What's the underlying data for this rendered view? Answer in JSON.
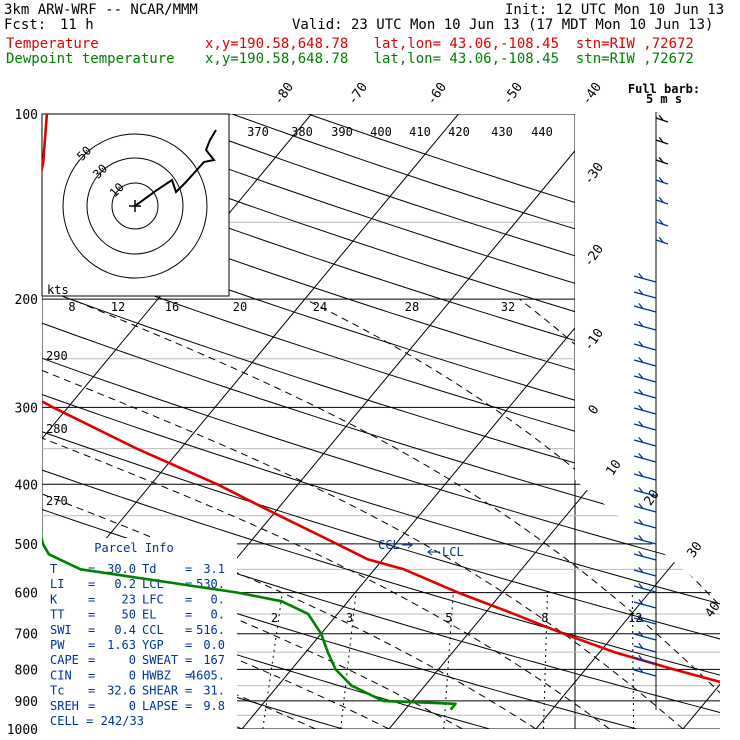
{
  "header": {
    "title": "3km ARW-WRF -- NCAR/MMM",
    "init": "Init: 12 UTC Mon 10 Jun 13",
    "fcst_label": "Fcst:",
    "fcst_value": "11 h",
    "valid": "Valid: 23 UTC Mon 10 Jun 13 (17 MDT Mon 10 Jun 13)"
  },
  "legend": [
    {
      "name": "Temperature",
      "info": "x,y=190.58,648.78   lat,lon= 43.06,-108.45  stn=RIW ,72672",
      "color": "#e00000"
    },
    {
      "name": "Dewpoint temperature",
      "info": "x,y=190.58,648.78   lat,lon= 43.06,-108.45  stn=RIW ,72672",
      "color": "#008000"
    }
  ],
  "barb_legend": {
    "line1": "Full barb:",
    "line2": "5 m s"
  },
  "hodograph": {
    "units": "kts",
    "ring_labels": [
      "50",
      "30",
      "10"
    ]
  },
  "parcel_info": {
    "title": "Parcel Info",
    "rows": [
      [
        "T",
        "=",
        "30.0",
        "Td",
        "=",
        "3.1"
      ],
      [
        "LI",
        "=",
        "0.2",
        "LCL",
        "=",
        "530."
      ],
      [
        "K",
        "=",
        "23",
        "LFC",
        "=",
        "0."
      ],
      [
        "TT",
        "=",
        "50",
        "EL",
        "=",
        "0."
      ],
      [
        "SWI",
        "=",
        "0.4",
        "CCL",
        "=",
        "516."
      ],
      [
        "PW",
        "=",
        "1.63",
        "YGP",
        "=",
        "0.0"
      ],
      [
        "CAPE",
        "=",
        "0",
        "SWEAT",
        "=",
        "167"
      ],
      [
        "CIN",
        "=",
        "0",
        "HWBZ",
        "=",
        "4605."
      ],
      [
        "Tc",
        "=",
        "32.6",
        "SHEAR",
        "=",
        "31."
      ],
      [
        "SREH",
        "=",
        "0",
        "LAPSE",
        "=",
        "9.8"
      ],
      [
        "CELL",
        "=",
        "242/33",
        "",
        "",
        ""
      ]
    ]
  },
  "markers": {
    "ccl": "CCL",
    "lcl": "LCL"
  },
  "colors": {
    "temperature": "#e00000",
    "dewpoint": "#008000",
    "isotherm": "#000000",
    "parcel_box": "#003399"
  },
  "chart_data": {
    "type": "line",
    "title": "",
    "ylabel": "",
    "xlabel": "",
    "y_scale": "log",
    "ylim": [
      1000,
      100
    ],
    "pressure_ticks": [
      100,
      200,
      300,
      400,
      500,
      600,
      700,
      800,
      900,
      1000
    ],
    "isotherm_labels": [
      "-80",
      "-70",
      "-60",
      "-50",
      "-40",
      "-30",
      "-20",
      "-10",
      "0",
      "10",
      "20",
      "30",
      "40"
    ],
    "theta_labels": [
      "370",
      "380",
      "390",
      "400",
      "410",
      "420",
      "430",
      "440"
    ],
    "theta_left_labels": [
      "290",
      "280",
      "270"
    ],
    "mixing_ratio_labels": [
      "2",
      "3",
      "5",
      "8",
      "12",
      "20"
    ],
    "hodograph_speed_labels": [
      "8",
      "12",
      "16",
      "20",
      "24",
      "28",
      "32"
    ],
    "series": [
      {
        "name": "Temperature",
        "color": "#e00000",
        "p": [
          930,
          900,
          850,
          800,
          750,
          700,
          650,
          600,
          550,
          530,
          500,
          450,
          400,
          350,
          300,
          250,
          230,
          210,
          200,
          180,
          150,
          120,
          100
        ],
        "t": [
          30.0,
          26.0,
          21.0,
          16.0,
          11.0,
          6.5,
          2.0,
          -3.0,
          -8.0,
          -11.0,
          -14.0,
          -19.5,
          -25.5,
          -33.0,
          -41.0,
          -50.0,
          -54.0,
          -56.5,
          -55.5,
          -53.0,
          -53.0,
          -55.5,
          -58.0
        ]
      },
      {
        "name": "Dewpoint temperature",
        "color": "#008000",
        "p": [
          930,
          910,
          900,
          850,
          800,
          750,
          700,
          650,
          620,
          600,
          550,
          520,
          500,
          450,
          400,
          350,
          300,
          250,
          200,
          180,
          150,
          130,
          115,
          100
        ],
        "t": [
          3.1,
          3.1,
          -2.0,
          -5.0,
          -7.0,
          -8.5,
          -10.0,
          -12.0,
          -14.5,
          -18.0,
          -30.0,
          -33.0,
          -34.0,
          -36.0,
          -38.5,
          -42.0,
          -47.0,
          -55.0,
          -64.0,
          -67.5,
          -72.0,
          -74.0,
          -73.5,
          -72.0
        ]
      }
    ]
  }
}
